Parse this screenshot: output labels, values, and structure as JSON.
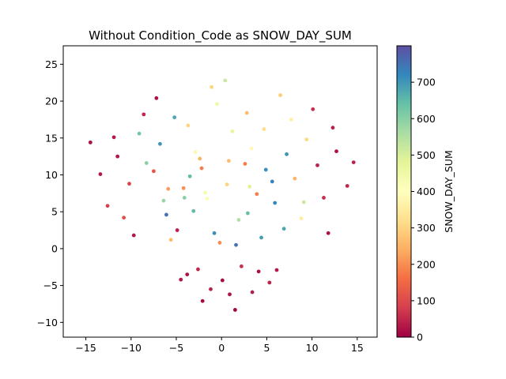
{
  "chart_data": {
    "type": "scatter",
    "title": "Without Condition_Code as SNOW_DAY_SUM",
    "xlabel": "",
    "ylabel": "",
    "xlim": [
      -17.5,
      17.2
    ],
    "ylim": [
      -12,
      27.5
    ],
    "x_ticks": [
      -15,
      -10,
      -5,
      0,
      5,
      10,
      15
    ],
    "y_ticks": [
      -10,
      -5,
      0,
      5,
      10,
      15,
      20,
      25
    ],
    "grid": false,
    "colorbar": {
      "label": "SNOW_DAY_SUM",
      "colormap": "Spectral",
      "range": [
        0,
        800
      ],
      "ticks": [
        0,
        100,
        200,
        300,
        400,
        500,
        600,
        700
      ]
    },
    "series": [
      {
        "x": [
          -4.5,
          -3.8,
          -2.6,
          -2.1,
          -1.2,
          0.1,
          0.9,
          1.5,
          2.2,
          3.4,
          4.1,
          5.3,
          6.1,
          -6.8,
          -7.5,
          -5.2,
          -0.5,
          2.8,
          4.7,
          7.2,
          -3.1,
          -1.6,
          0.6,
          1.9,
          3.9,
          5.9,
          -8.3,
          -6.1,
          -4.2,
          -2.9,
          8.1,
          9.4,
          10.6,
          -10.2,
          -9.1,
          -7.2,
          6.9,
          8.8,
          11.3,
          -11.5,
          -12.6,
          12.7,
          13.9,
          -13.4,
          -14.5,
          14.6,
          -1.1,
          0.4,
          1.2,
          -2.4,
          -3.5,
          2.6,
          3.3,
          -0.8,
          4.4,
          -5.6,
          -6.4,
          5.6,
          6.5,
          -4.9,
          7.7,
          9.1,
          -8.6,
          -9.7,
          10.1,
          -10.8,
          11.8,
          -11.9,
          12.3,
          -0.2,
          1.6,
          2.9,
          -3.7,
          -2.2,
          0.8,
          -1.8,
          3.1,
          -4.1,
          4.9,
          -5.9
        ],
        "y": [
          -4.2,
          -3.5,
          -2.8,
          -7.1,
          -5.5,
          -4.3,
          -6.2,
          -8.3,
          -2.4,
          -5.9,
          -3.1,
          -4.6,
          -2.9,
          14.2,
          10.5,
          17.8,
          19.6,
          18.4,
          16.2,
          12.8,
          5.1,
          6.8,
          8.7,
          3.9,
          7.4,
          6.2,
          11.6,
          4.6,
          8.2,
          13.1,
          9.5,
          14.8,
          11.3,
          8.8,
          15.6,
          20.4,
          2.7,
          4.1,
          6.9,
          12.5,
          5.8,
          13.2,
          8.5,
          10.1,
          14.4,
          11.7,
          21.9,
          22.8,
          15.9,
          12.2,
          9.8,
          11.5,
          13.6,
          2.1,
          1.5,
          1.2,
          6.5,
          9.1,
          20.8,
          2.5,
          17.5,
          6.3,
          18.2,
          1.8,
          18.9,
          4.2,
          2.1,
          15.1,
          16.4,
          0.8,
          0.5,
          4.8,
          16.7,
          10.9,
          11.9,
          7.6,
          8.4,
          6.9,
          10.7,
          8.1
        ],
        "c": [
          30,
          20,
          50,
          10,
          40,
          15,
          25,
          5,
          60,
          35,
          20,
          45,
          30,
          700,
          120,
          680,
          450,
          260,
          320,
          700,
          650,
          420,
          300,
          550,
          180,
          720,
          600,
          750,
          200,
          380,
          250,
          310,
          40,
          90,
          620,
          20,
          680,
          350,
          60,
          30,
          80,
          20,
          50,
          30,
          20,
          40,
          300,
          520,
          470,
          250,
          650,
          180,
          380,
          710,
          690,
          260,
          580,
          730,
          290,
          40,
          360,
          520,
          50,
          30,
          60,
          110,
          20,
          30,
          40,
          200,
          750,
          640,
          300,
          180,
          260,
          430,
          490,
          600,
          710,
          220
        ]
      }
    ]
  }
}
